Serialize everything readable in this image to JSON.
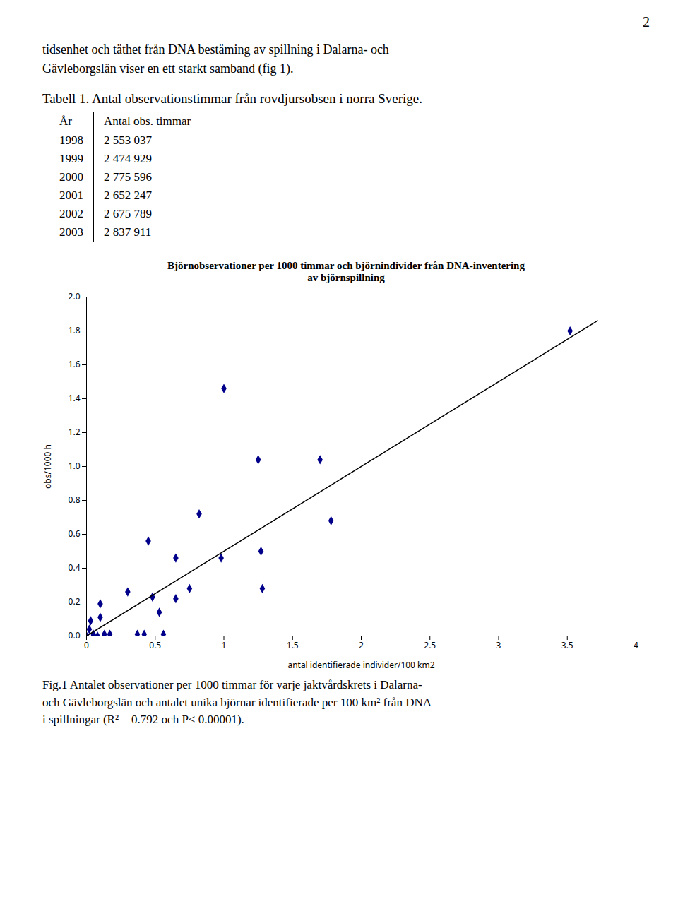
{
  "page_number": "2",
  "paragraphs": [
    "tidsenhet och täthet från DNA bestäming av spillning i Dalarna- och",
    "Gävleborgslän viser en ett starkt samband (fig 1)."
  ],
  "table": {
    "title": "Tabell 1. Antal observationstimmar från rovdjursobsen i norra Sverige.",
    "columns": [
      "År",
      "Antal obs. timmar"
    ],
    "rows": [
      [
        "1998",
        "2 553 037"
      ],
      [
        "1999",
        "2 474 929"
      ],
      [
        "2000",
        "2 775 596"
      ],
      [
        "2001",
        "2 652 247"
      ],
      [
        "2002",
        "2 675 789"
      ],
      [
        "2003",
        "2 837 911"
      ]
    ]
  },
  "chart_data": {
    "type": "scatter",
    "title": [
      "Björnobservationer per 1000 timmar och björnindivider från DNA-inventering",
      "av björnspillning"
    ],
    "xlabel": "antal identifierade individer/100 km2",
    "ylabel": "obs/1000 h",
    "xlim": [
      0,
      4
    ],
    "ylim": [
      0,
      2.0
    ],
    "xticks": [
      0,
      0.5,
      1,
      1.5,
      2,
      2.5,
      3,
      3.5,
      4
    ],
    "yticks": [
      {
        "value": 0.0,
        "label": "0.0"
      },
      0.2,
      0.4,
      0.6,
      0.8,
      {
        "value": 1.0,
        "label": "1.0"
      },
      1.2,
      1.4,
      1.6,
      1.8,
      {
        "value": 2.0,
        "label": "2.0"
      }
    ],
    "grid": false,
    "series": [
      {
        "type": "scatter",
        "marker": "diamond",
        "color": "#00008B",
        "x": [
          0.0,
          0.02,
          0.03,
          0.05,
          0.05,
          0.08,
          0.1,
          0.1,
          0.13,
          0.17,
          0.3,
          0.37,
          0.42,
          0.45,
          0.48,
          0.53,
          0.56,
          0.65,
          0.65,
          0.75,
          0.82,
          0.98,
          1.0,
          1.27,
          1.28,
          1.25,
          1.7,
          1.78,
          3.52
        ],
        "values": [
          0.0,
          0.04,
          0.09,
          0.0,
          0.01,
          0.0,
          0.19,
          0.11,
          0.01,
          0.01,
          0.26,
          0.01,
          0.01,
          0.56,
          0.23,
          0.14,
          0.01,
          0.46,
          0.22,
          0.28,
          0.72,
          0.46,
          1.46,
          0.5,
          0.28,
          1.04,
          1.04,
          0.68,
          1.8
        ]
      },
      {
        "type": "line",
        "line_style": "solid",
        "color": "#000000",
        "x": [
          0.0,
          3.72
        ],
        "values": [
          0.0,
          1.86
        ]
      }
    ]
  },
  "caption": [
    "Fig.1 Antalet observationer per 1000 timmar för varje jaktvårdskrets i Dalarna-",
    "och Gävleborgslän och antalet unika björnar identifierade per 100 km² från DNA",
    "i spillningar (R² = 0.792 och P< 0.00001)."
  ]
}
